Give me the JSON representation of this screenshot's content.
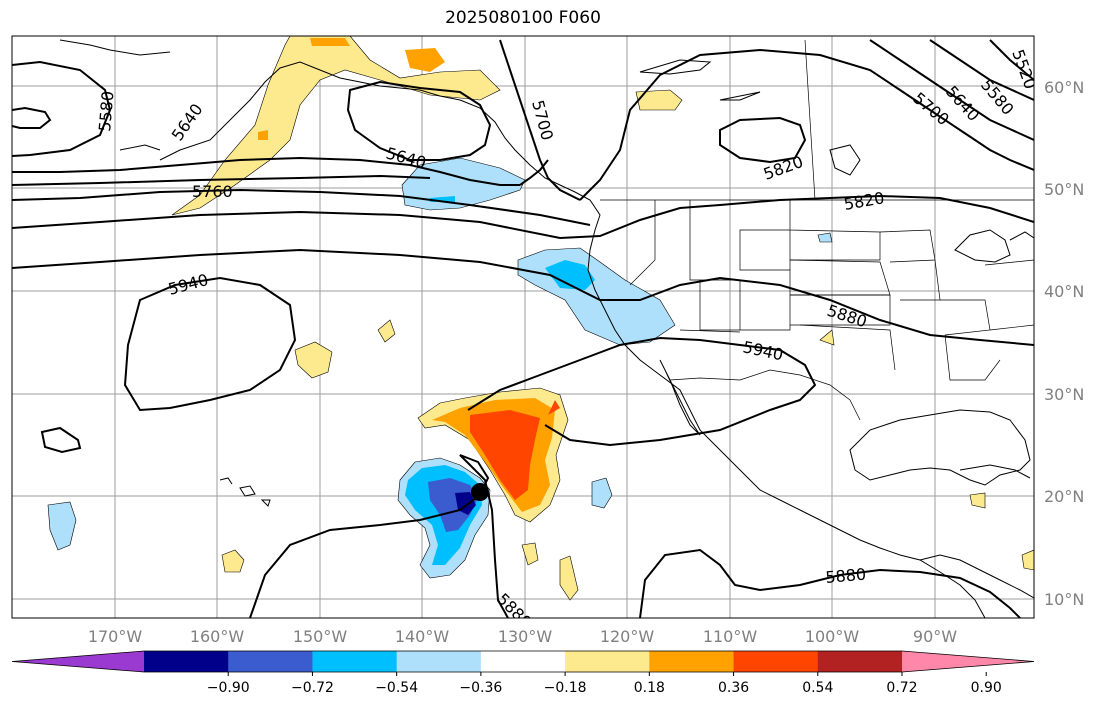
{
  "title": "2025080100 F060",
  "lat_labels": [
    "60°N",
    "50°N",
    "40°N",
    "30°N",
    "20°N",
    "10°N"
  ],
  "lon_labels": [
    "170°W",
    "160°W",
    "150°W",
    "140°W",
    "130°W",
    "120°W",
    "110°W",
    "100°W",
    "90°W"
  ],
  "contour_labels": [
    "5580",
    "5640",
    "5640",
    "5700",
    "5700",
    "5640",
    "5580",
    "5520",
    "5760",
    "5820",
    "5820",
    "5940",
    "5940",
    "5880",
    "5880",
    "5880"
  ],
  "colorbar": {
    "colors": [
      "#9a3ad0",
      "#00008b",
      "#3a5ccf",
      "#00bfff",
      "#aee0fb",
      "#ffffff",
      "#fde98e",
      "#ffa200",
      "#ff4500",
      "#b22222",
      "#ff88aa"
    ],
    "tick_labels": [
      "−0.90",
      "−0.72",
      "−0.54",
      "−0.36",
      "−0.18",
      "0.18",
      "0.36",
      "0.54",
      "0.72",
      "0.90"
    ]
  },
  "storm_marker": {
    "lat": 20.2,
    "lon": -134.5
  }
}
